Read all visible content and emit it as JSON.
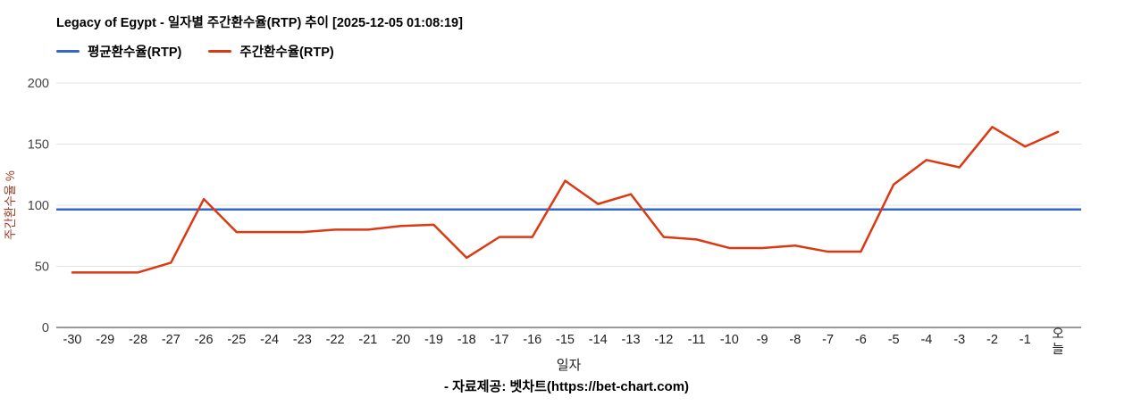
{
  "header": {
    "title": "Legacy of Egypt - 일자별 주간환수율(RTP) 추이 [2025-12-05 01:08:19]"
  },
  "legend": [
    {
      "label": "평균환수율(RTP)",
      "color": "#3366cc"
    },
    {
      "label": "주간환수율(RTP)",
      "color": "#dc3912"
    }
  ],
  "chart_data": {
    "type": "line",
    "title": "Legacy of Egypt - 일자별 주간환수율(RTP) 추이 [2025-12-05 01:08:19]",
    "xlabel": "일자",
    "ylabel": "주간환수율 %",
    "ylabel_color": "#9e3a26",
    "ylim": [
      0,
      200
    ],
    "yticks": [
      0,
      50,
      100,
      150,
      200
    ],
    "grid": true,
    "legend_position": "top",
    "categories": [
      "-30",
      "-29",
      "-28",
      "-27",
      "-26",
      "-25",
      "-24",
      "-23",
      "-22",
      "-21",
      "-20",
      "-19",
      "-18",
      "-17",
      "-16",
      "-15",
      "-14",
      "-13",
      "-12",
      "-11",
      "-10",
      "-9",
      "-8",
      "-7",
      "-6",
      "-5",
      "-4",
      "-3",
      "-2",
      "-1",
      "오늘"
    ],
    "series": [
      {
        "name": "평균환수율(RTP)",
        "color": "#3366cc",
        "constant_value": 96.5
      },
      {
        "name": "주간환수율(RTP)",
        "color": "#dc3912",
        "values": [
          45,
          45,
          45,
          53,
          105,
          78,
          78,
          78,
          80,
          80,
          83,
          84,
          57,
          74,
          74,
          120,
          101,
          109,
          74,
          72,
          65,
          65,
          67,
          62,
          62,
          117,
          137,
          131,
          164,
          148,
          160
        ]
      }
    ]
  },
  "footer": {
    "text": "- 자료제공: 벳차트(https://bet-chart.com)"
  }
}
